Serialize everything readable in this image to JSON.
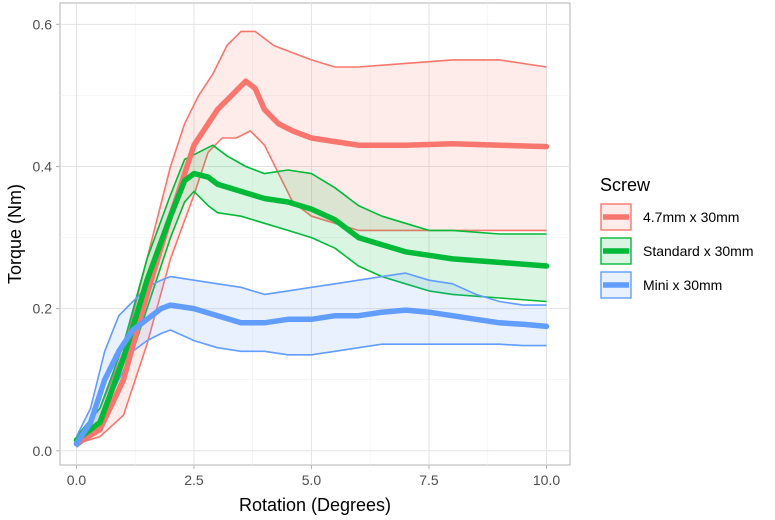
{
  "chart_data": {
    "type": "line",
    "xlabel": "Rotation (Degrees)",
    "ylabel": "Torque (Nm)",
    "xlim": [
      -0.35,
      10.5
    ],
    "ylim": [
      -0.02,
      0.63
    ],
    "x_ticks": [
      0.0,
      2.5,
      5.0,
      7.5,
      10.0
    ],
    "x_tick_labels": [
      "0.0",
      "2.5",
      "5.0",
      "7.5",
      "10.0"
    ],
    "y_ticks": [
      0.0,
      0.2,
      0.4,
      0.6
    ],
    "y_tick_labels": [
      "0.0",
      "0.2",
      "0.4",
      "0.6"
    ],
    "grid": true,
    "legend_position": "right",
    "legend": {
      "title": "Screw"
    },
    "series": [
      {
        "name": "4.7mm x 30mm",
        "color": "#F8766D",
        "mean": [
          [
            0.0,
            0.01
          ],
          [
            0.5,
            0.03
          ],
          [
            1.0,
            0.1
          ],
          [
            1.5,
            0.22
          ],
          [
            2.0,
            0.33
          ],
          [
            2.3,
            0.39
          ],
          [
            2.5,
            0.43
          ],
          [
            2.8,
            0.46
          ],
          [
            3.0,
            0.48
          ],
          [
            3.3,
            0.5
          ],
          [
            3.6,
            0.52
          ],
          [
            3.8,
            0.51
          ],
          [
            4.0,
            0.48
          ],
          [
            4.3,
            0.46
          ],
          [
            4.6,
            0.45
          ],
          [
            5.0,
            0.44
          ],
          [
            5.5,
            0.435
          ],
          [
            6.0,
            0.43
          ],
          [
            7.0,
            0.43
          ],
          [
            8.0,
            0.432
          ],
          [
            9.0,
            0.43
          ],
          [
            10.0,
            0.428
          ]
        ],
        "upper": [
          [
            0.0,
            0.02
          ],
          [
            0.5,
            0.06
          ],
          [
            1.0,
            0.14
          ],
          [
            1.5,
            0.27
          ],
          [
            2.0,
            0.4
          ],
          [
            2.3,
            0.46
          ],
          [
            2.6,
            0.5
          ],
          [
            2.9,
            0.53
          ],
          [
            3.2,
            0.57
          ],
          [
            3.5,
            0.59
          ],
          [
            3.8,
            0.59
          ],
          [
            4.2,
            0.57
          ],
          [
            4.6,
            0.56
          ],
          [
            5.0,
            0.55
          ],
          [
            5.5,
            0.54
          ],
          [
            6.0,
            0.54
          ],
          [
            7.0,
            0.545
          ],
          [
            8.0,
            0.55
          ],
          [
            9.0,
            0.55
          ],
          [
            10.0,
            0.54
          ]
        ],
        "lower": [
          [
            0.0,
            0.01
          ],
          [
            0.5,
            0.02
          ],
          [
            1.0,
            0.05
          ],
          [
            1.5,
            0.15
          ],
          [
            2.0,
            0.27
          ],
          [
            2.5,
            0.36
          ],
          [
            2.8,
            0.42
          ],
          [
            3.1,
            0.44
          ],
          [
            3.4,
            0.44
          ],
          [
            3.7,
            0.45
          ],
          [
            4.0,
            0.43
          ],
          [
            4.3,
            0.39
          ],
          [
            4.6,
            0.35
          ],
          [
            5.0,
            0.33
          ],
          [
            5.5,
            0.32
          ],
          [
            6.0,
            0.31
          ],
          [
            7.0,
            0.31
          ],
          [
            8.0,
            0.31
          ],
          [
            9.0,
            0.31
          ],
          [
            10.0,
            0.31
          ]
        ]
      },
      {
        "name": "Standard x 30mm",
        "color": "#00BA38",
        "mean": [
          [
            0.0,
            0.015
          ],
          [
            0.5,
            0.04
          ],
          [
            1.0,
            0.13
          ],
          [
            1.5,
            0.24
          ],
          [
            2.0,
            0.33
          ],
          [
            2.3,
            0.38
          ],
          [
            2.5,
            0.39
          ],
          [
            2.8,
            0.385
          ],
          [
            3.0,
            0.375
          ],
          [
            3.5,
            0.365
          ],
          [
            4.0,
            0.355
          ],
          [
            4.5,
            0.35
          ],
          [
            5.0,
            0.34
          ],
          [
            5.5,
            0.325
          ],
          [
            6.0,
            0.3
          ],
          [
            6.5,
            0.29
          ],
          [
            7.0,
            0.28
          ],
          [
            7.5,
            0.275
          ],
          [
            8.0,
            0.27
          ],
          [
            9.0,
            0.265
          ],
          [
            10.0,
            0.26
          ]
        ],
        "upper": [
          [
            0.0,
            0.02
          ],
          [
            0.5,
            0.06
          ],
          [
            1.0,
            0.15
          ],
          [
            1.5,
            0.27
          ],
          [
            2.0,
            0.36
          ],
          [
            2.3,
            0.41
          ],
          [
            2.6,
            0.42
          ],
          [
            2.9,
            0.43
          ],
          [
            3.2,
            0.415
          ],
          [
            3.6,
            0.4
          ],
          [
            4.0,
            0.39
          ],
          [
            4.5,
            0.395
          ],
          [
            5.0,
            0.39
          ],
          [
            5.5,
            0.37
          ],
          [
            6.0,
            0.345
          ],
          [
            6.5,
            0.33
          ],
          [
            7.0,
            0.32
          ],
          [
            7.5,
            0.31
          ],
          [
            8.0,
            0.31
          ],
          [
            9.0,
            0.305
          ],
          [
            10.0,
            0.305
          ]
        ],
        "lower": [
          [
            0.0,
            0.01
          ],
          [
            0.5,
            0.03
          ],
          [
            1.0,
            0.1
          ],
          [
            1.5,
            0.2
          ],
          [
            2.0,
            0.3
          ],
          [
            2.3,
            0.35
          ],
          [
            2.5,
            0.365
          ],
          [
            2.8,
            0.345
          ],
          [
            3.0,
            0.335
          ],
          [
            3.5,
            0.33
          ],
          [
            4.0,
            0.32
          ],
          [
            4.5,
            0.31
          ],
          [
            5.0,
            0.3
          ],
          [
            5.5,
            0.285
          ],
          [
            6.0,
            0.26
          ],
          [
            6.5,
            0.245
          ],
          [
            7.0,
            0.235
          ],
          [
            7.5,
            0.225
          ],
          [
            8.0,
            0.22
          ],
          [
            9.0,
            0.215
          ],
          [
            10.0,
            0.21
          ]
        ]
      },
      {
        "name": "Mini x 30mm",
        "color": "#619CFF",
        "mean": [
          [
            0.0,
            0.01
          ],
          [
            0.3,
            0.04
          ],
          [
            0.6,
            0.1
          ],
          [
            0.9,
            0.14
          ],
          [
            1.2,
            0.17
          ],
          [
            1.5,
            0.185
          ],
          [
            1.8,
            0.2
          ],
          [
            2.0,
            0.205
          ],
          [
            2.5,
            0.2
          ],
          [
            3.0,
            0.19
          ],
          [
            3.5,
            0.18
          ],
          [
            4.0,
            0.18
          ],
          [
            4.5,
            0.185
          ],
          [
            5.0,
            0.185
          ],
          [
            5.5,
            0.19
          ],
          [
            6.0,
            0.19
          ],
          [
            6.5,
            0.195
          ],
          [
            7.0,
            0.198
          ],
          [
            7.5,
            0.195
          ],
          [
            8.0,
            0.19
          ],
          [
            8.5,
            0.185
          ],
          [
            9.0,
            0.18
          ],
          [
            9.5,
            0.178
          ],
          [
            10.0,
            0.175
          ]
        ],
        "upper": [
          [
            0.0,
            0.02
          ],
          [
            0.3,
            0.06
          ],
          [
            0.6,
            0.14
          ],
          [
            0.9,
            0.19
          ],
          [
            1.2,
            0.21
          ],
          [
            1.5,
            0.23
          ],
          [
            1.8,
            0.24
          ],
          [
            2.0,
            0.245
          ],
          [
            2.5,
            0.24
          ],
          [
            3.0,
            0.235
          ],
          [
            3.5,
            0.23
          ],
          [
            4.0,
            0.22
          ],
          [
            4.5,
            0.225
          ],
          [
            5.0,
            0.23
          ],
          [
            5.5,
            0.235
          ],
          [
            6.0,
            0.24
          ],
          [
            6.5,
            0.245
          ],
          [
            7.0,
            0.25
          ],
          [
            7.5,
            0.24
          ],
          [
            8.0,
            0.235
          ],
          [
            8.5,
            0.22
          ],
          [
            9.0,
            0.21
          ],
          [
            9.5,
            0.205
          ],
          [
            10.0,
            0.205
          ]
        ],
        "lower": [
          [
            0.0,
            0.005
          ],
          [
            0.3,
            0.02
          ],
          [
            0.6,
            0.06
          ],
          [
            0.9,
            0.1
          ],
          [
            1.2,
            0.14
          ],
          [
            1.5,
            0.155
          ],
          [
            1.8,
            0.165
          ],
          [
            2.0,
            0.17
          ],
          [
            2.5,
            0.155
          ],
          [
            3.0,
            0.145
          ],
          [
            3.5,
            0.14
          ],
          [
            4.0,
            0.14
          ],
          [
            4.5,
            0.135
          ],
          [
            5.0,
            0.135
          ],
          [
            5.5,
            0.14
          ],
          [
            6.0,
            0.145
          ],
          [
            6.5,
            0.15
          ],
          [
            7.0,
            0.15
          ],
          [
            7.5,
            0.15
          ],
          [
            8.0,
            0.15
          ],
          [
            8.5,
            0.15
          ],
          [
            9.0,
            0.15
          ],
          [
            9.5,
            0.148
          ],
          [
            10.0,
            0.148
          ]
        ]
      }
    ]
  }
}
